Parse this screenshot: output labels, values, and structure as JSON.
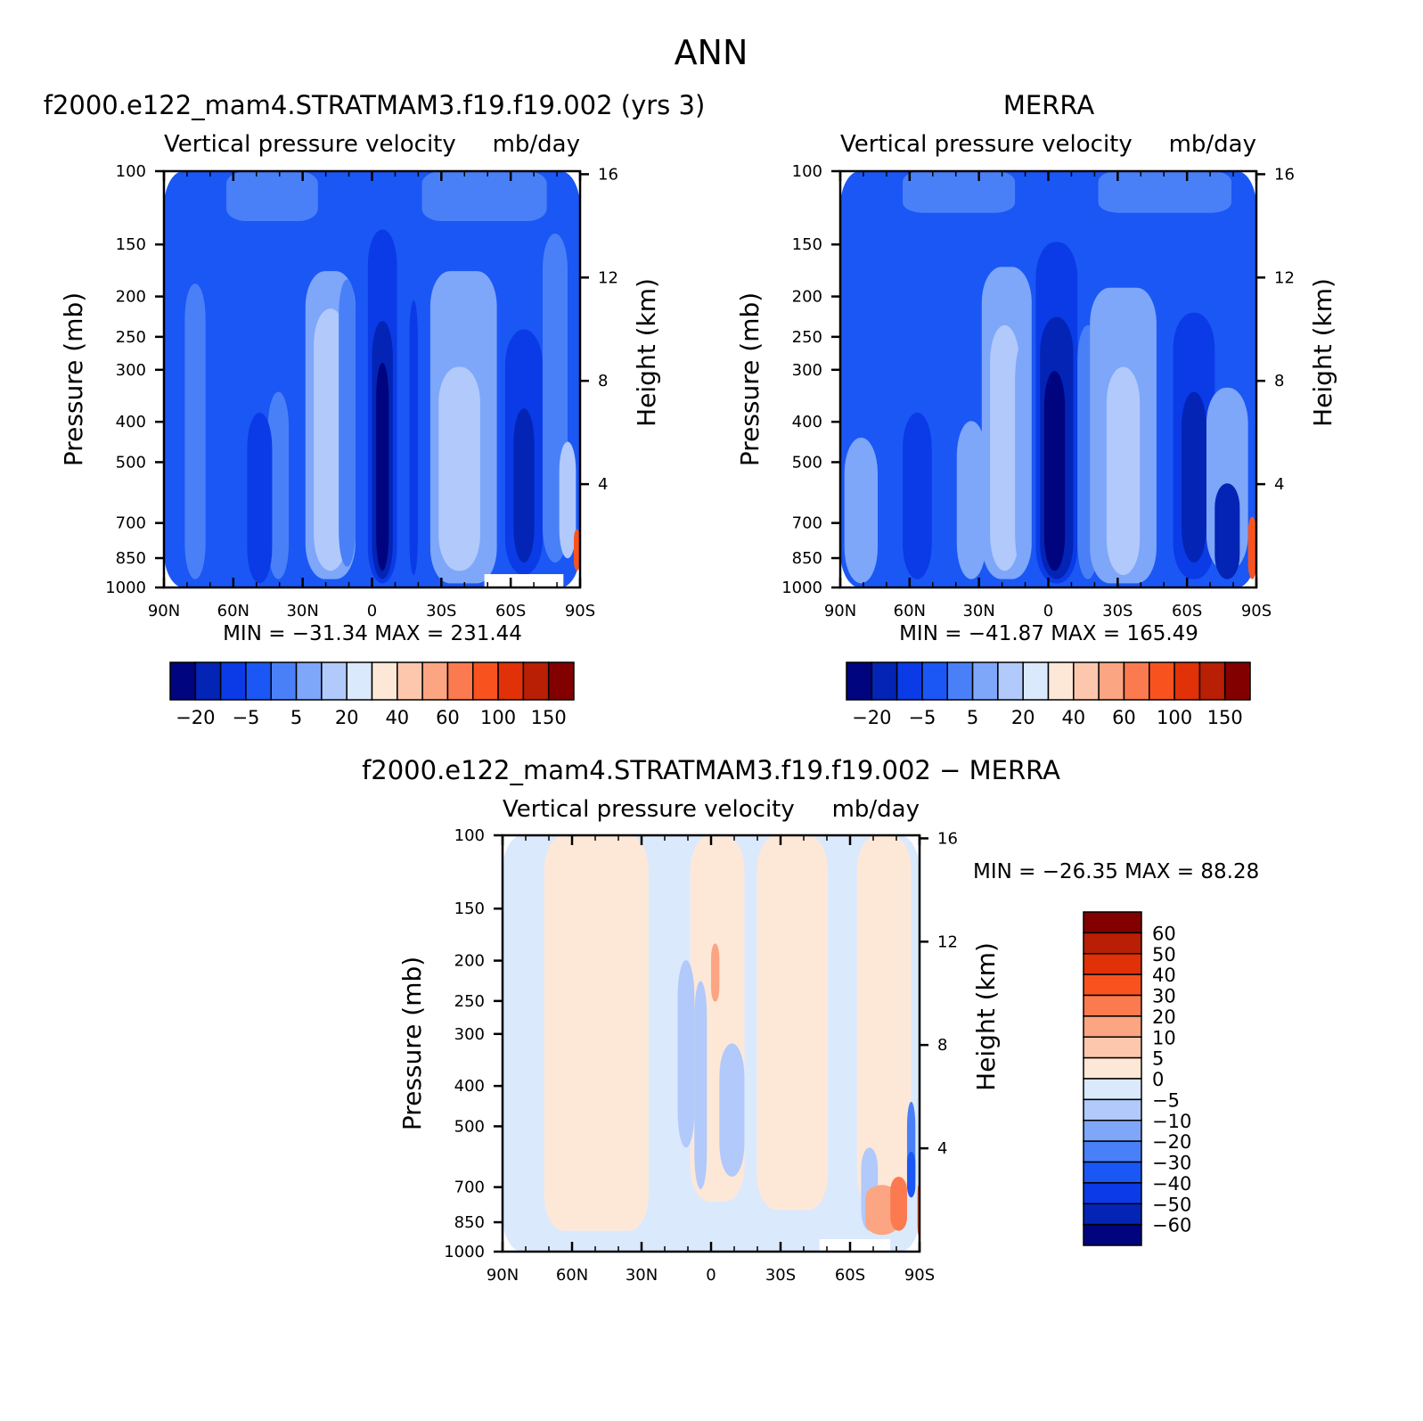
{
  "page": {
    "title": "ANN"
  },
  "colors": {
    "model_palette": [
      "#00047e",
      "#0324b5",
      "#0a3be6",
      "#1a57f5",
      "#4a80f7",
      "#7ea6f9",
      "#b1c9fb",
      "#dbe9fc",
      "#fde8d8",
      "#fdc7ad",
      "#fca582",
      "#fb7a4f",
      "#f8531f",
      "#e03108",
      "#b81f05",
      "#830000"
    ],
    "diff_palette": [
      "#00047e",
      "#0324b5",
      "#0a3be6",
      "#1a57f5",
      "#4a80f7",
      "#7ea6f9",
      "#b1c9fb",
      "#dbe9fc",
      "#fde8d8",
      "#fdc7ad",
      "#fca582",
      "#fb7a4f",
      "#f8531f",
      "#e03108",
      "#b81f05",
      "#830000"
    ]
  },
  "chart_data": [
    {
      "type": "heatmap",
      "id": "model",
      "title": "f2000.e122_mam4.STRATMAM3.f19.f19.002 (yrs 3)",
      "subtitle_left": "Vertical pressure velocity",
      "subtitle_right": "mb/day",
      "ylabel": "Pressure (mb)",
      "y2label": "Height (km)",
      "x_ticks": [
        "90N",
        "60N",
        "30N",
        "0",
        "30S",
        "60S",
        "90S"
      ],
      "y_ticks": [
        100,
        150,
        200,
        250,
        300,
        400,
        500,
        700,
        850,
        1000
      ],
      "y2_ticks": [
        16,
        12,
        8,
        4
      ],
      "stats": {
        "min_label": "MIN",
        "min": "−31.34",
        "max_label": "MAX",
        "max": "231.44"
      },
      "colorbar_labels": [
        "−20",
        "−5",
        "5",
        "20",
        "40",
        "60",
        "100",
        "150"
      ]
    },
    {
      "type": "heatmap",
      "id": "obs",
      "title": "MERRA",
      "subtitle_left": "Vertical pressure velocity",
      "subtitle_right": "mb/day",
      "ylabel": "Pressure (mb)",
      "y2label": "Height (km)",
      "x_ticks": [
        "90N",
        "60N",
        "30N",
        "0",
        "30S",
        "60S",
        "90S"
      ],
      "y_ticks": [
        100,
        150,
        200,
        250,
        300,
        400,
        500,
        700,
        850,
        1000
      ],
      "y2_ticks": [
        16,
        12,
        8,
        4
      ],
      "stats": {
        "min_label": "MIN",
        "min": "−41.87",
        "max_label": "MAX",
        "max": "165.49"
      },
      "colorbar_labels": [
        "−20",
        "−5",
        "5",
        "20",
        "40",
        "60",
        "100",
        "150"
      ]
    },
    {
      "type": "heatmap",
      "id": "diff",
      "title": "f2000.e122_mam4.STRATMAM3.f19.f19.002 − MERRA",
      "subtitle_left": "Vertical pressure velocity",
      "subtitle_right": "mb/day",
      "ylabel": "Pressure (mb)",
      "y2label": "Height (km)",
      "x_ticks": [
        "90N",
        "60N",
        "30N",
        "0",
        "30S",
        "60S",
        "90S"
      ],
      "y_ticks": [
        100,
        150,
        200,
        250,
        300,
        400,
        500,
        700,
        850,
        1000
      ],
      "y2_ticks": [
        16,
        12,
        8,
        4
      ],
      "stats": {
        "min_label": "MIN",
        "min": "−26.35",
        "max_label": "MAX",
        "max": "88.28"
      },
      "colorbar_labels": [
        "60",
        "50",
        "40",
        "30",
        "20",
        "10",
        "5",
        "0",
        "−5",
        "−10",
        "−20",
        "−30",
        "−40",
        "−50",
        "−60"
      ]
    }
  ]
}
